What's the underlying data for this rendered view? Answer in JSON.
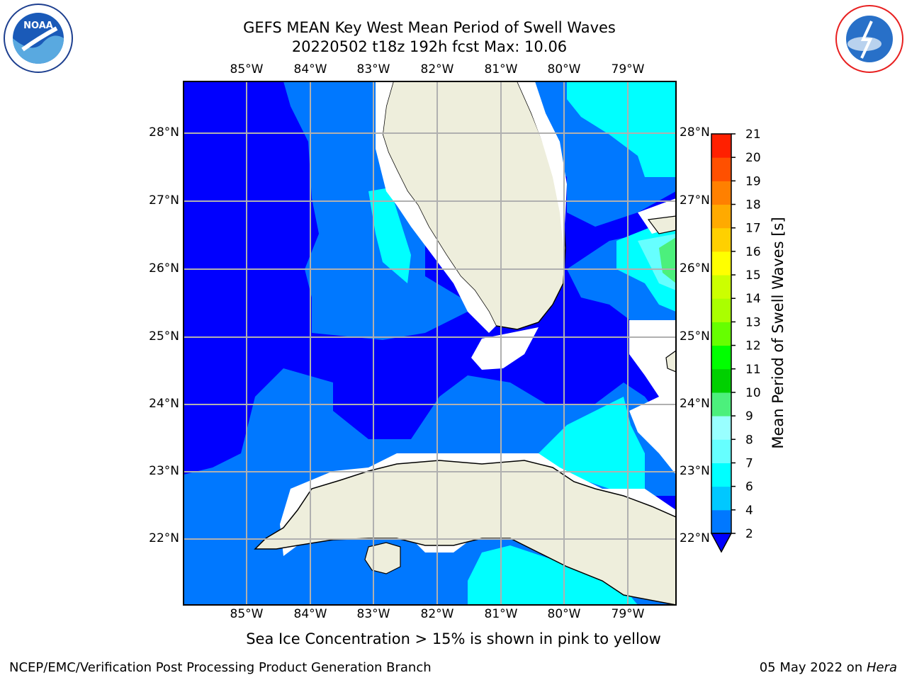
{
  "title": {
    "line1": "GEFS MEAN Key West Mean Period of Swell Waves",
    "line2": "20220502 t18z 192h fcst   Max: 10.06"
  },
  "logos": {
    "noaa_text": "NOAA",
    "noaa_ring": "NATIONAL OCEANIC AND ATMOSPHERIC ADMINISTRATION · U.S. DEPARTMENT OF COMMERCE",
    "nws_ring": "NATIONAL WEATHER SERVICE"
  },
  "map": {
    "lon_labels": [
      "85°W",
      "84°W",
      "83°W",
      "82°W",
      "81°W",
      "80°W",
      "79°W"
    ],
    "lat_labels": [
      "28°N",
      "27°N",
      "26°N",
      "25°N",
      "24°N",
      "23°N",
      "22°N"
    ],
    "colors": {
      "blue_dark": "#0000ff",
      "blue_mid": "#0078ff",
      "cyan": "#00ffff",
      "cyan_light": "#66ffff",
      "green_light": "#4cf07c",
      "land": "#eeeedc"
    }
  },
  "colorbar": {
    "label": "Mean Period of Swell Waves [s]",
    "ticks": [
      "2",
      "4",
      "6",
      "7",
      "8",
      "9",
      "10",
      "11",
      "12",
      "13",
      "14",
      "15",
      "16",
      "17",
      "18",
      "19",
      "20",
      "21"
    ],
    "colors": [
      "#0078ff",
      "#00c8ff",
      "#00ffff",
      "#66ffff",
      "#99ffff",
      "#4cf07c",
      "#00d000",
      "#00ff00",
      "#66ff00",
      "#aaff00",
      "#ccff00",
      "#ffff00",
      "#ffd000",
      "#ffaa00",
      "#ff8000",
      "#ff5000",
      "#ff2000",
      "#ff0000"
    ],
    "extend_color": "#0000ff"
  },
  "caption": "Sea Ice Concentration > 15% is shown in pink to yellow",
  "footer": {
    "left": "NCEP/EMC/Verification Post Processing Product Generation Branch",
    "right_date": "05 May 2022 on ",
    "right_host": "Hera"
  }
}
